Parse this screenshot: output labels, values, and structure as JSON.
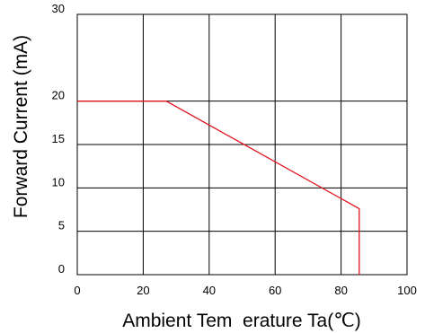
{
  "chart_data": {
    "type": "line",
    "title": "",
    "xlabel": "Ambient Tem  erature Ta(℃)",
    "ylabel": "Forward Current (mA)",
    "xlim": [
      0,
      100
    ],
    "ylim": [
      0,
      30
    ],
    "x_ticks": [
      "0",
      "20",
      "40",
      "60",
      "80",
      "100"
    ],
    "y_ticks": [
      "0",
      "5",
      "10",
      "15",
      "20",
      "30"
    ],
    "x_tick_values": [
      0,
      20,
      40,
      60,
      80,
      100
    ],
    "y_tick_values": [
      0,
      5,
      10,
      15,
      20,
      30
    ],
    "grid": true,
    "legend": "none",
    "series": [
      {
        "color": "#e0141e",
        "points": [
          {
            "x": 0,
            "y": 20
          },
          {
            "x": 27,
            "y": 20
          },
          {
            "x": 85.5,
            "y": 7.6
          },
          {
            "x": 85.5,
            "y": 0
          }
        ]
      }
    ]
  }
}
